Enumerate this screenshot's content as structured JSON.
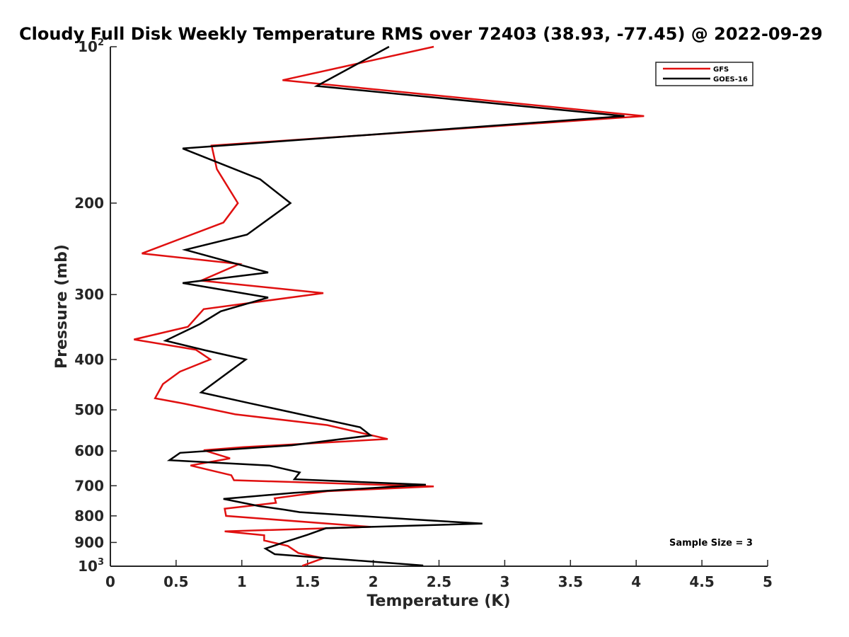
{
  "chart_data": {
    "type": "line",
    "title": "Cloudy Full Disk Weekly Temperature RMS over 72403 (38.93, -77.45) @ 2022-09-29",
    "xlabel": "Temperature (K)",
    "ylabel": "Pressure (mb)",
    "xlim": [
      0,
      5
    ],
    "ylim": [
      100,
      1000
    ],
    "yscale": "log",
    "yreversed": true,
    "x_ticks": [
      0,
      0.5,
      1,
      1.5,
      2,
      2.5,
      3,
      3.5,
      4,
      4.5,
      5
    ],
    "x_tick_labels": [
      "0",
      "0.5",
      "1",
      "1.5",
      "2",
      "2.5",
      "3",
      "3.5",
      "4",
      "4.5",
      "5"
    ],
    "y_ticks": [
      {
        "value": 100,
        "base": "10",
        "exp": "2"
      },
      {
        "value": 200,
        "label": "200"
      },
      {
        "value": 300,
        "label": "300"
      },
      {
        "value": 400,
        "label": "400"
      },
      {
        "value": 500,
        "label": "500"
      },
      {
        "value": 600,
        "label": "600"
      },
      {
        "value": 700,
        "label": "700"
      },
      {
        "value": 800,
        "label": "800"
      },
      {
        "value": 900,
        "label": "900"
      },
      {
        "value": 1000,
        "base": "10",
        "exp": "3"
      }
    ],
    "grid": false,
    "legend_position": "top-right",
    "annotation": "Sample Size = 3",
    "series": [
      {
        "name": "GFS",
        "color": "#e01010",
        "points": [
          [
            2.46,
            100
          ],
          [
            1.31,
            116
          ],
          [
            4.06,
            136
          ],
          [
            0.77,
            155
          ],
          [
            0.81,
            172
          ],
          [
            0.97,
            200
          ],
          [
            0.86,
            218
          ],
          [
            0.24,
            250
          ],
          [
            0.98,
            262
          ],
          [
            0.69,
            282
          ],
          [
            1.62,
            298
          ],
          [
            0.71,
            320
          ],
          [
            0.59,
            346
          ],
          [
            0.18,
            366
          ],
          [
            0.65,
            383
          ],
          [
            0.76,
            400
          ],
          [
            0.53,
            422
          ],
          [
            0.4,
            446
          ],
          [
            0.34,
            475
          ],
          [
            0.57,
            487
          ],
          [
            0.95,
            510
          ],
          [
            1.65,
            535
          ],
          [
            2.11,
            569
          ],
          [
            1.01,
            590
          ],
          [
            0.71,
            598
          ],
          [
            0.91,
            620
          ],
          [
            0.61,
            640
          ],
          [
            0.92,
            668
          ],
          [
            0.94,
            683
          ],
          [
            2.46,
            702
          ],
          [
            1.65,
            717
          ],
          [
            1.25,
            740
          ],
          [
            1.26,
            755
          ],
          [
            0.87,
            775
          ],
          [
            0.88,
            800
          ],
          [
            1.98,
            840
          ],
          [
            0.87,
            857
          ],
          [
            1.17,
            872
          ],
          [
            1.17,
            892
          ],
          [
            1.35,
            914
          ],
          [
            1.43,
            943
          ],
          [
            1.62,
            965
          ],
          [
            1.46,
            998
          ]
        ]
      },
      {
        "name": "GOES-16",
        "color": "#000000",
        "points": [
          [
            2.12,
            100
          ],
          [
            1.57,
            119
          ],
          [
            3.91,
            136
          ],
          [
            0.55,
            157
          ],
          [
            1.14,
            180
          ],
          [
            1.37,
            200
          ],
          [
            1.04,
            230
          ],
          [
            0.57,
            246
          ],
          [
            1.2,
            272
          ],
          [
            0.55,
            285
          ],
          [
            1.2,
            304
          ],
          [
            0.84,
            323
          ],
          [
            0.68,
            342
          ],
          [
            0.42,
            368
          ],
          [
            0.72,
            384
          ],
          [
            1.03,
            400
          ],
          [
            0.69,
            463
          ],
          [
            1.05,
            485
          ],
          [
            1.9,
            540
          ],
          [
            1.98,
            560
          ],
          [
            1.38,
            585
          ],
          [
            0.53,
            605
          ],
          [
            0.45,
            625
          ],
          [
            1.21,
            640
          ],
          [
            1.44,
            660
          ],
          [
            1.4,
            680
          ],
          [
            2.4,
            697
          ],
          [
            1.4,
            722
          ],
          [
            0.86,
            742
          ],
          [
            1.13,
            766
          ],
          [
            1.32,
            778
          ],
          [
            1.44,
            787
          ],
          [
            2.28,
            812
          ],
          [
            2.83,
            828
          ],
          [
            1.64,
            845
          ],
          [
            1.5,
            870
          ],
          [
            1.33,
            898
          ],
          [
            1.18,
            925
          ],
          [
            1.25,
            948
          ],
          [
            2.38,
            997
          ]
        ]
      }
    ]
  }
}
